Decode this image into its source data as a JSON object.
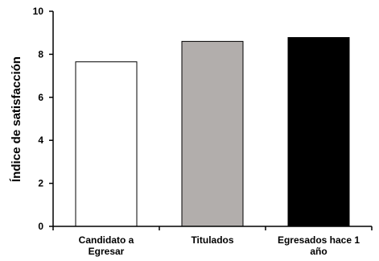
{
  "chart_data": {
    "type": "bar",
    "title": "",
    "xlabel": "",
    "ylabel": "Índice de satisfacción",
    "ylim": [
      0,
      10
    ],
    "yticks": [
      "0",
      "2",
      "4",
      "6",
      "8",
      "10"
    ],
    "grid": false,
    "legend": "none",
    "categories": [
      [
        "Candidato a",
        "Egresar"
      ],
      [
        "Titulados"
      ],
      [
        "Egresados hace 1",
        "año"
      ]
    ],
    "values": [
      7.65,
      8.6,
      8.78
    ],
    "colors": [
      "#ffffff",
      "#b2aeac",
      "#000000"
    ],
    "bar_edge_color": "#000000"
  }
}
